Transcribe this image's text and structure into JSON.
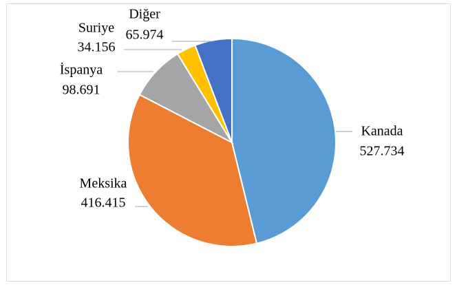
{
  "chart_data": {
    "type": "pie",
    "categories": [
      "Kanada",
      "Meksika",
      "İspanya",
      "Suriye",
      "Diğer"
    ],
    "values": [
      527734,
      416415,
      98691,
      34156,
      65974
    ],
    "value_labels": [
      "527.734",
      "416.415",
      "98.691",
      "34.156",
      "65.974"
    ],
    "colors": [
      "#5b9bd5",
      "#ed7d31",
      "#a5a5a5",
      "#ffc000",
      "#4472c4"
    ]
  }
}
